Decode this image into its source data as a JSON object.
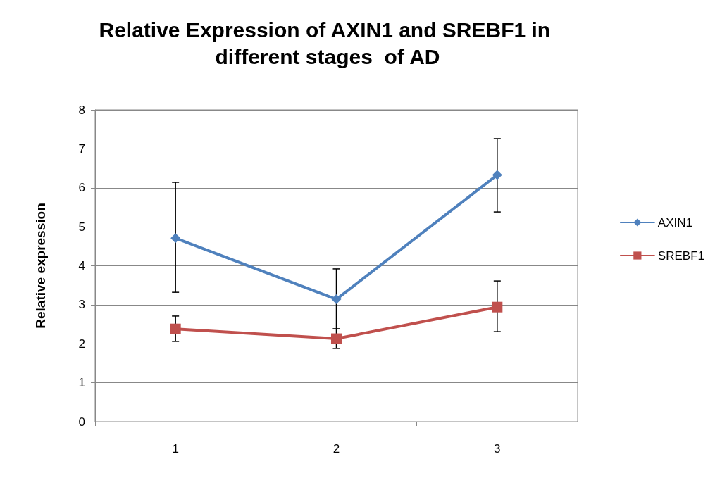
{
  "chart_data": {
    "type": "line",
    "title": "Relative Expression of AXIN1 and SREBF1 in different stages  of AD",
    "ylabel": "Relative expression",
    "categories": [
      "1",
      "2",
      "3"
    ],
    "series": [
      {
        "name": "AXIN1",
        "color": "#4f81bd",
        "marker": "diamond",
        "values": [
          4.71,
          3.14,
          6.33
        ],
        "errors": [
          [
            3.32,
            6.14
          ],
          [
            2.38,
            3.92
          ],
          [
            5.38,
            7.26
          ]
        ]
      },
      {
        "name": "SREBF1",
        "color": "#c0504d",
        "marker": "square",
        "values": [
          2.38,
          2.13,
          2.94
        ],
        "errors": [
          [
            2.06,
            2.71
          ],
          [
            1.88,
            2.38
          ],
          [
            2.31,
            3.61
          ]
        ]
      }
    ],
    "ylim": [
      0,
      8
    ],
    "yticks": [
      0,
      1,
      2,
      3,
      4,
      5,
      6,
      7,
      8
    ],
    "grid": "y",
    "legend": "right",
    "line_style": "solid"
  }
}
